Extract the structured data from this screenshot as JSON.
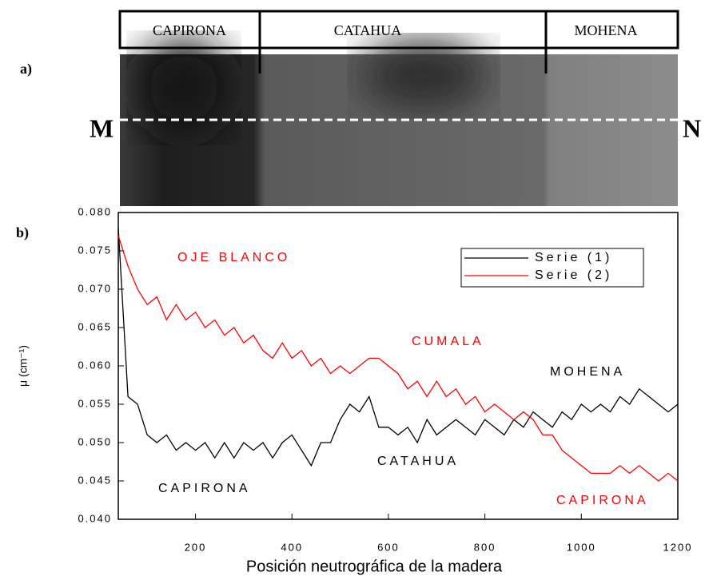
{
  "neutrograph": {
    "panel_label": "a)",
    "woods": [
      "CAPIRONA",
      "CATAHUA",
      "MOHENA"
    ],
    "start_marker": "M",
    "end_marker": "N"
  },
  "chart_data": {
    "type": "line",
    "panel_label": "b)",
    "xlabel": "Posición neutrográfica de la madera",
    "ylabel": "μ (cm⁻¹)",
    "x": [
      40,
      60,
      80,
      100,
      120,
      140,
      160,
      180,
      200,
      220,
      240,
      260,
      280,
      300,
      320,
      340,
      360,
      380,
      400,
      420,
      440,
      460,
      480,
      500,
      520,
      540,
      560,
      580,
      600,
      620,
      640,
      660,
      680,
      700,
      720,
      740,
      760,
      780,
      800,
      820,
      840,
      860,
      880,
      900,
      920,
      940,
      960,
      980,
      1000,
      1020,
      1040,
      1060,
      1080,
      1100,
      1120,
      1140,
      1160,
      1180,
      1200
    ],
    "series": [
      {
        "name": "Serie (1)",
        "color": "#000000",
        "values": [
          0.078,
          0.056,
          0.055,
          0.051,
          0.05,
          0.051,
          0.049,
          0.05,
          0.049,
          0.05,
          0.048,
          0.05,
          0.048,
          0.05,
          0.049,
          0.05,
          0.048,
          0.05,
          0.051,
          0.049,
          0.047,
          0.05,
          0.05,
          0.053,
          0.055,
          0.054,
          0.056,
          0.052,
          0.052,
          0.051,
          0.052,
          0.05,
          0.053,
          0.051,
          0.052,
          0.053,
          0.052,
          0.051,
          0.053,
          0.052,
          0.051,
          0.053,
          0.052,
          0.054,
          0.053,
          0.052,
          0.054,
          0.053,
          0.055,
          0.054,
          0.055,
          0.054,
          0.056,
          0.055,
          0.057,
          0.056,
          0.055,
          0.054,
          0.055
        ]
      },
      {
        "name": "Serie (2)",
        "color": "#ff0000",
        "values": [
          0.077,
          0.073,
          0.07,
          0.068,
          0.069,
          0.066,
          0.068,
          0.066,
          0.067,
          0.065,
          0.066,
          0.064,
          0.065,
          0.063,
          0.064,
          0.062,
          0.061,
          0.063,
          0.061,
          0.062,
          0.06,
          0.061,
          0.059,
          0.06,
          0.059,
          0.06,
          0.061,
          0.061,
          0.06,
          0.059,
          0.057,
          0.058,
          0.056,
          0.058,
          0.056,
          0.057,
          0.055,
          0.056,
          0.054,
          0.055,
          0.054,
          0.053,
          0.054,
          0.053,
          0.051,
          0.051,
          0.049,
          0.048,
          0.047,
          0.046,
          0.046,
          0.046,
          0.047,
          0.046,
          0.047,
          0.046,
          0.045,
          0.046,
          0.045
        ]
      }
    ],
    "xlim": [
      40,
      1200
    ],
    "xticks": [
      200,
      400,
      600,
      800,
      1000,
      1200
    ],
    "ylim": [
      0.04,
      0.08
    ],
    "yticks": [
      {
        "value": 0.04,
        "label": "0.040"
      },
      {
        "value": 0.045,
        "label": "0.045"
      },
      {
        "value": 0.05,
        "label": "0.050"
      },
      {
        "value": 0.055,
        "label": "0.055"
      },
      {
        "value": 0.06,
        "label": "0.060"
      },
      {
        "value": 0.065,
        "label": "0.065"
      },
      {
        "value": 0.07,
        "label": "0.070"
      },
      {
        "value": 0.075,
        "label": "0.075"
      },
      {
        "value": 0.08,
        "label": "0.080"
      }
    ],
    "legend": "upper right",
    "annotations": [
      {
        "text": "OJE BLANCO",
        "color": "#ff0000"
      },
      {
        "text": "CUMALA",
        "color": "#ff0000"
      },
      {
        "text": "MOHENA",
        "color": "#000000"
      },
      {
        "text": "CATAHUA",
        "color": "#000000"
      },
      {
        "text": "CAPIRONA",
        "color": "#000000"
      },
      {
        "text": "CAPIRONA",
        "color": "#ff0000"
      }
    ]
  }
}
